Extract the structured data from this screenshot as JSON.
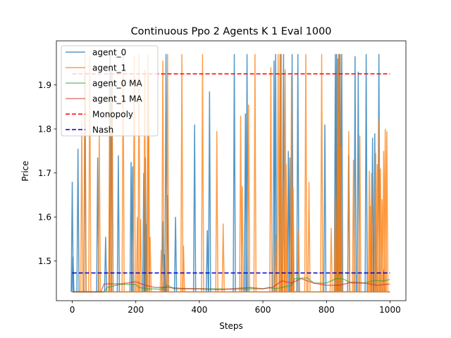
{
  "chart_data": {
    "type": "line",
    "title": "Continuous Ppo 2 Agents K 1 Eval 1000",
    "xlabel": "Steps",
    "ylabel": "Price",
    "xlim": [
      -50,
      1050
    ],
    "ylim": [
      1.41,
      2.0
    ],
    "xticks": [
      0,
      200,
      400,
      600,
      800,
      1000
    ],
    "xtick_labels": [
      "0",
      "200",
      "400",
      "600",
      "800",
      "1000"
    ],
    "yticks": [
      1.5,
      1.6,
      1.7,
      1.8,
      1.9
    ],
    "ytick_labels": [
      "1.5",
      "1.6",
      "1.7",
      "1.8",
      "1.9"
    ],
    "legend_position": "upper-left",
    "grid": false,
    "baseline": 1.43,
    "series": [
      {
        "name": "agent_0",
        "color": "#1f77b4",
        "style": "spikes",
        "spikes": [
          [
            0,
            1.68
          ],
          [
            2,
            1.51
          ],
          [
            18,
            1.755
          ],
          [
            40,
            1.93
          ],
          [
            80,
            1.735
          ],
          [
            105,
            1.555
          ],
          [
            120,
            1.97
          ],
          [
            125,
            1.92
          ],
          [
            145,
            1.74
          ],
          [
            185,
            1.725
          ],
          [
            190,
            1.715
          ],
          [
            225,
            1.7
          ],
          [
            230,
            1.735
          ],
          [
            232,
            1.585
          ],
          [
            285,
            1.59
          ],
          [
            290,
            1.515
          ],
          [
            295,
            1.97
          ],
          [
            300,
            1.65
          ],
          [
            325,
            1.6
          ],
          [
            385,
            1.81
          ],
          [
            425,
            1.57
          ],
          [
            432,
            1.885
          ],
          [
            510,
            1.97
          ],
          [
            545,
            1.835
          ],
          [
            550,
            1.97
          ],
          [
            635,
            1.955
          ],
          [
            640,
            1.97
          ],
          [
            655,
            1.97
          ],
          [
            665,
            1.97
          ],
          [
            680,
            1.75
          ],
          [
            685,
            1.735
          ],
          [
            692,
            1.97
          ],
          [
            710,
            1.97
          ],
          [
            795,
            1.81
          ],
          [
            828,
            1.97
          ],
          [
            832,
            1.97
          ],
          [
            836,
            1.96
          ],
          [
            840,
            1.97
          ],
          [
            843,
            1.97
          ],
          [
            848,
            1.97
          ],
          [
            870,
            1.74
          ],
          [
            890,
            1.965
          ],
          [
            900,
            1.93
          ],
          [
            925,
            1.97
          ],
          [
            945,
            1.78
          ],
          [
            952,
            1.79
          ],
          [
            965,
            1.97
          ],
          [
            980,
            1.48
          ]
        ]
      },
      {
        "name": "agent_1",
        "color": "#ff7f0e",
        "style": "spikes",
        "spikes": [
          [
            30,
            1.815
          ],
          [
            40,
            1.97
          ],
          [
            55,
            1.965
          ],
          [
            85,
            1.8
          ],
          [
            118,
            1.97
          ],
          [
            125,
            1.94
          ],
          [
            160,
            1.97
          ],
          [
            195,
            1.965
          ],
          [
            205,
            1.6
          ],
          [
            210,
            1.97
          ],
          [
            215,
            1.595
          ],
          [
            228,
            1.935
          ],
          [
            238,
            1.97
          ],
          [
            240,
            1.925
          ],
          [
            245,
            1.555
          ],
          [
            280,
            1.525
          ],
          [
            285,
            1.955
          ],
          [
            300,
            1.97
          ],
          [
            345,
            1.97
          ],
          [
            350,
            1.535
          ],
          [
            410,
            1.97
          ],
          [
            455,
            1.795
          ],
          [
            475,
            1.585
          ],
          [
            530,
            1.83
          ],
          [
            535,
            1.67
          ],
          [
            555,
            1.855
          ],
          [
            575,
            1.97
          ],
          [
            625,
            1.94
          ],
          [
            640,
            1.56
          ],
          [
            648,
            1.97
          ],
          [
            654,
            1.97
          ],
          [
            658,
            1.97
          ],
          [
            665,
            1.67
          ],
          [
            670,
            1.935
          ],
          [
            673,
            1.72
          ],
          [
            690,
            1.92
          ],
          [
            695,
            1.665
          ],
          [
            712,
            1.57
          ],
          [
            735,
            1.97
          ],
          [
            745,
            1.68
          ],
          [
            785,
            1.97
          ],
          [
            815,
            1.575
          ],
          [
            828,
            1.645
          ],
          [
            835,
            1.93
          ],
          [
            838,
            1.97
          ],
          [
            842,
            1.97
          ],
          [
            846,
            1.76
          ],
          [
            870,
            1.795
          ],
          [
            885,
            1.73
          ],
          [
            905,
            1.785
          ],
          [
            935,
            1.705
          ],
          [
            938,
            1.625
          ],
          [
            942,
            1.7
          ],
          [
            955,
            1.745
          ],
          [
            960,
            1.72
          ],
          [
            965,
            1.82
          ],
          [
            970,
            1.71
          ],
          [
            975,
            1.64
          ],
          [
            980,
            1.75
          ],
          [
            985,
            1.8
          ],
          [
            990,
            1.795
          ]
        ]
      },
      {
        "name": "agent_0 MA",
        "color": "#2ca02c",
        "style": "line",
        "points": [
          [
            0,
            1.43
          ],
          [
            100,
            1.43
          ],
          [
            110,
            1.44
          ],
          [
            150,
            1.447
          ],
          [
            200,
            1.447
          ],
          [
            210,
            1.44
          ],
          [
            240,
            1.437
          ],
          [
            280,
            1.436
          ],
          [
            300,
            1.445
          ],
          [
            320,
            1.437
          ],
          [
            400,
            1.437
          ],
          [
            450,
            1.437
          ],
          [
            500,
            1.436
          ],
          [
            560,
            1.437
          ],
          [
            600,
            1.437
          ],
          [
            620,
            1.44
          ],
          [
            640,
            1.437
          ],
          [
            660,
            1.44
          ],
          [
            690,
            1.445
          ],
          [
            700,
            1.46
          ],
          [
            740,
            1.462
          ],
          [
            760,
            1.45
          ],
          [
            800,
            1.45
          ],
          [
            830,
            1.46
          ],
          [
            850,
            1.46
          ],
          [
            880,
            1.45
          ],
          [
            920,
            1.45
          ],
          [
            950,
            1.456
          ],
          [
            980,
            1.455
          ],
          [
            1000,
            1.458
          ]
        ]
      },
      {
        "name": "agent_1 MA",
        "color": "#d62728",
        "style": "line",
        "points": [
          [
            0,
            1.43
          ],
          [
            90,
            1.43
          ],
          [
            100,
            1.448
          ],
          [
            150,
            1.448
          ],
          [
            200,
            1.453
          ],
          [
            230,
            1.445
          ],
          [
            260,
            1.44
          ],
          [
            300,
            1.44
          ],
          [
            340,
            1.438
          ],
          [
            400,
            1.437
          ],
          [
            460,
            1.435
          ],
          [
            500,
            1.437
          ],
          [
            560,
            1.44
          ],
          [
            600,
            1.437
          ],
          [
            630,
            1.44
          ],
          [
            660,
            1.455
          ],
          [
            690,
            1.45
          ],
          [
            720,
            1.46
          ],
          [
            760,
            1.45
          ],
          [
            800,
            1.445
          ],
          [
            840,
            1.445
          ],
          [
            880,
            1.452
          ],
          [
            920,
            1.45
          ],
          [
            960,
            1.445
          ],
          [
            1000,
            1.448
          ]
        ]
      },
      {
        "name": "Monopoly",
        "color": "#ff0000",
        "style": "hline",
        "y": 1.925
      },
      {
        "name": "Nash",
        "color": "#0000cc",
        "style": "hline",
        "y": 1.473
      }
    ]
  }
}
